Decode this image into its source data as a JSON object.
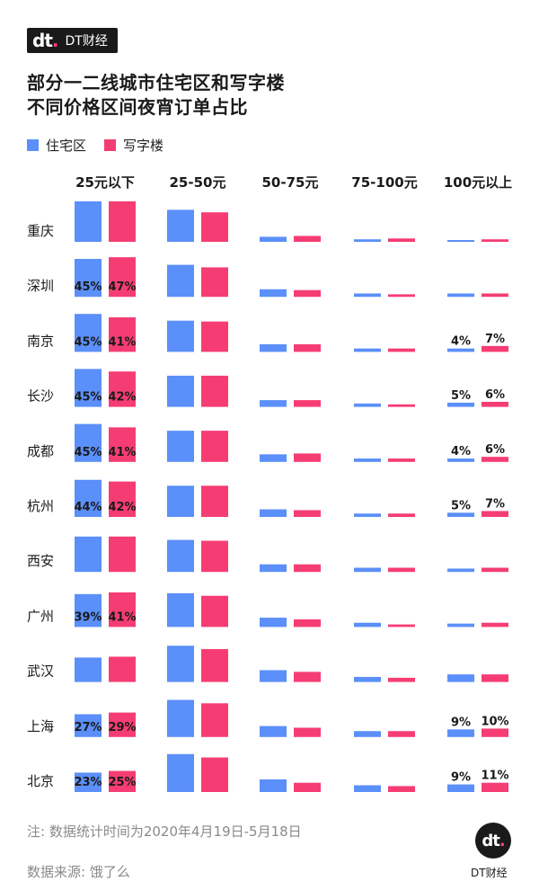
{
  "header": {
    "logo_mark": "dt",
    "logo_text": "DT财经",
    "title_line1": "部分一二线城市住宅区和写字楼",
    "title_line2": "不同价格区间夜宵订单占比"
  },
  "legend": [
    {
      "label": "住宅区",
      "color": "#5b8ff9"
    },
    {
      "label": "写字楼",
      "color": "#f53d74"
    }
  ],
  "footer": {
    "note": "注: 数据统计时间为2020年4月19日-5月18日",
    "source": "数据来源: 饿了么",
    "brand_mark": "dt",
    "brand_text": "DT财经"
  },
  "chart_data": {
    "type": "bar",
    "title": "部分一二线城市住宅区和写字楼不同价格区间夜宵订单占比",
    "price_ranges": [
      "25元以下",
      "25-50元",
      "50-75元",
      "75-100元",
      "100元以上"
    ],
    "cities": [
      "重庆",
      "深圳",
      "南京",
      "长沙",
      "成都",
      "杭州",
      "西安",
      "广州",
      "武汉",
      "上海",
      "北京"
    ],
    "series": [
      {
        "name": "住宅区",
        "color": "#5b8ff9",
        "values": [
          [
            48,
            38,
            6,
            3,
            2
          ],
          [
            45,
            38,
            9,
            4,
            4
          ],
          [
            45,
            37,
            9,
            4,
            4
          ],
          [
            45,
            37,
            8,
            4,
            5
          ],
          [
            45,
            37,
            9,
            4,
            4
          ],
          [
            44,
            37,
            9,
            4,
            5
          ],
          [
            42,
            38,
            9,
            5,
            4
          ],
          [
            39,
            40,
            11,
            5,
            4
          ],
          [
            29,
            43,
            14,
            6,
            9
          ],
          [
            27,
            44,
            13,
            7,
            9
          ],
          [
            23,
            45,
            15,
            8,
            9
          ]
        ],
        "labels": [
          [
            "",
            "",
            "",
            "",
            ""
          ],
          [
            "45%",
            "",
            "",
            "",
            ""
          ],
          [
            "45%",
            "",
            "",
            "",
            "4%"
          ],
          [
            "45%",
            "",
            "",
            "",
            "5%"
          ],
          [
            "45%",
            "",
            "",
            "",
            "4%"
          ],
          [
            "44%",
            "",
            "",
            "",
            "5%"
          ],
          [
            "",
            "",
            "",
            "",
            ""
          ],
          [
            "39%",
            "",
            "",
            "",
            ""
          ],
          [
            "",
            "",
            "",
            "",
            ""
          ],
          [
            "27%",
            "",
            "",
            "",
            "9%"
          ],
          [
            "23%",
            "",
            "",
            "",
            "9%"
          ]
        ]
      },
      {
        "name": "写字楼",
        "color": "#f53d74",
        "values": [
          [
            48,
            35,
            7,
            4,
            3
          ],
          [
            47,
            35,
            8,
            3,
            4
          ],
          [
            41,
            36,
            9,
            4,
            7
          ],
          [
            42,
            37,
            8,
            3,
            6
          ],
          [
            41,
            37,
            10,
            4,
            6
          ],
          [
            42,
            37,
            8,
            4,
            7
          ],
          [
            42,
            37,
            9,
            5,
            5
          ],
          [
            41,
            37,
            9,
            3,
            5
          ],
          [
            30,
            39,
            12,
            5,
            9
          ],
          [
            29,
            40,
            11,
            7,
            10
          ],
          [
            25,
            41,
            11,
            7,
            11
          ]
        ],
        "labels": [
          [
            "",
            "",
            "",
            "",
            ""
          ],
          [
            "47%",
            "",
            "",
            "",
            ""
          ],
          [
            "41%",
            "",
            "",
            "",
            "7%"
          ],
          [
            "42%",
            "",
            "",
            "",
            "6%"
          ],
          [
            "41%",
            "",
            "",
            "",
            "6%"
          ],
          [
            "42%",
            "",
            "",
            "",
            "7%"
          ],
          [
            "",
            "",
            "",
            "",
            ""
          ],
          [
            "41%",
            "",
            "",
            "",
            ""
          ],
          [
            "",
            "",
            "",
            "",
            ""
          ],
          [
            "29%",
            "",
            "",
            "",
            "10%"
          ],
          [
            "25%",
            "",
            "",
            "",
            "11%"
          ]
        ]
      }
    ]
  }
}
